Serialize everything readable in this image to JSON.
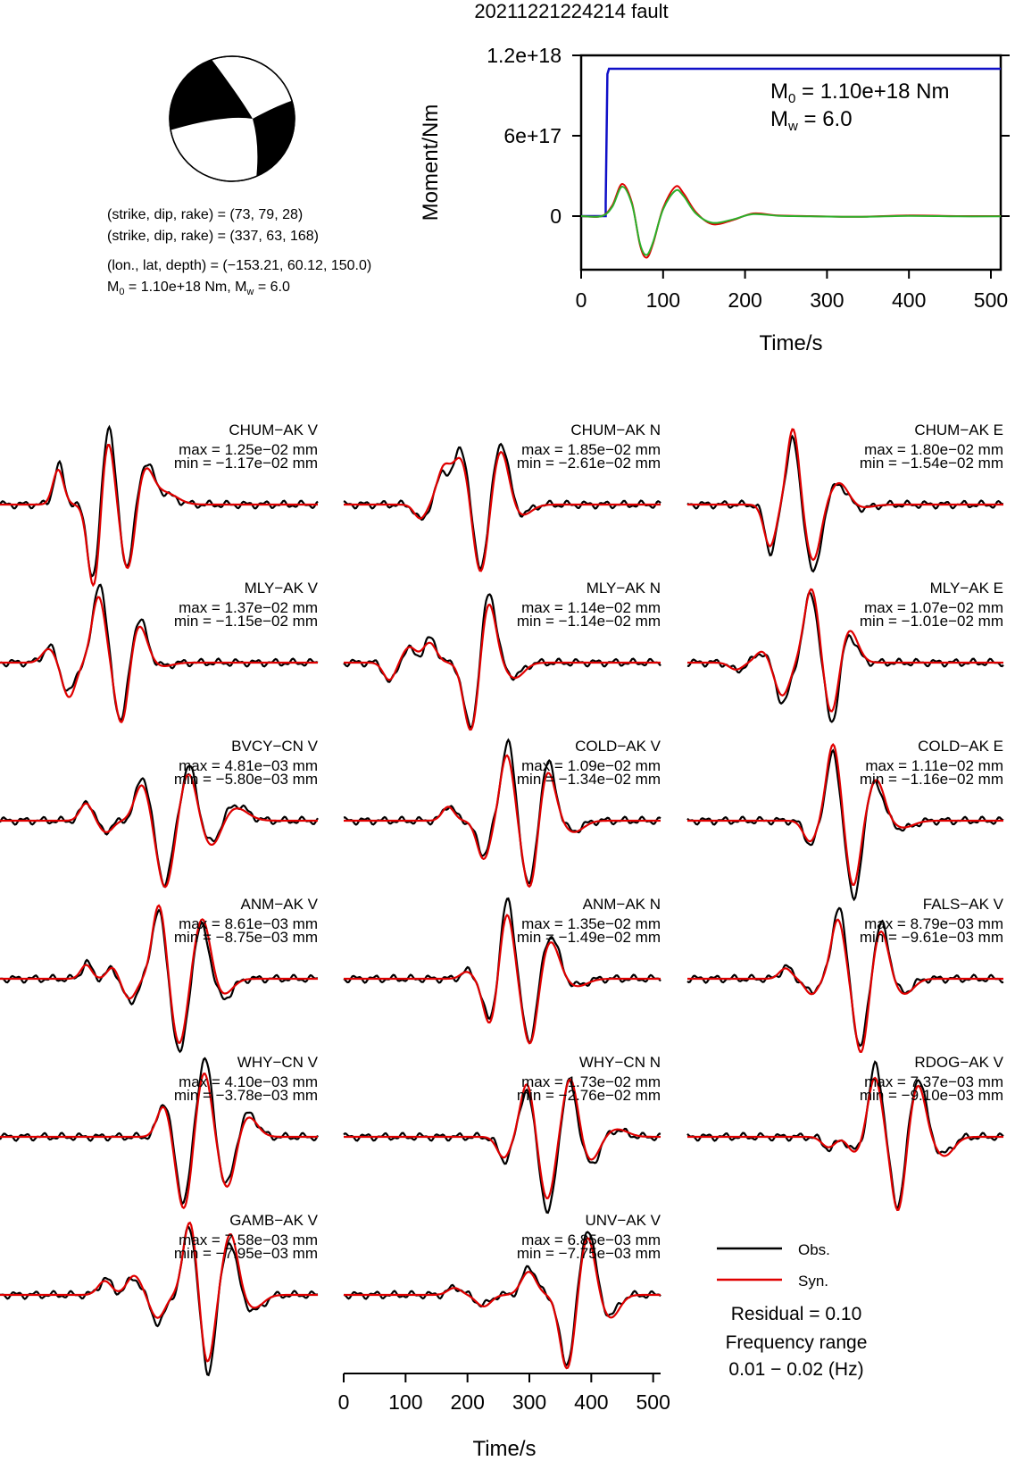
{
  "title": "20211221224214 fault",
  "colors": {
    "observed": "#000000",
    "synthetic": "#e00000",
    "moment": "#1010c8",
    "stf_green": "#2ab02a"
  },
  "mechanism": {
    "line1": "(strike, dip, rake) = (73, 79, 28)",
    "line2": "(strike, dip, rake) = (337, 63, 168)",
    "line3": "(lon., lat, depth) = (−153.21, 60.12, 150.0)",
    "line4_pre": "M",
    "line4_sub": "0",
    "line4_mid": " = 1.10e+18 Nm, M",
    "line4_sub2": "w",
    "line4_post": " = 6.0"
  },
  "moment_panel": {
    "ylabel": "Moment/Nm",
    "xlabel": "Time/s",
    "m0_pre": "M",
    "m0_sub": "0",
    "m0_post": " = 1.10e+18 Nm",
    "mw_pre": "M",
    "mw_sub": "w",
    "mw_post": " = 6.0"
  },
  "chart_data": [
    {
      "type": "line",
      "name": "moment_function",
      "x_range": [
        0,
        512
      ],
      "y_range": [
        -4e+17,
        1.2e+18
      ],
      "yticks": [
        0,
        6e+17,
        1.2e+18
      ],
      "ytick_labels": [
        "0",
        "6e+17",
        "1.2e+18"
      ],
      "xticks": [
        0,
        100,
        200,
        300,
        400,
        500
      ],
      "xtick_labels": [
        "0",
        "100",
        "200",
        "300",
        "400",
        "500"
      ],
      "xlabel": "Time/s",
      "ylabel": "Moment/Nm",
      "series": [
        {
          "color": "#1010c8",
          "x": [
            0,
            30,
            30,
            32,
            34,
            512
          ],
          "y": [
            0,
            0,
            1e+17,
            1.06e+18,
            1.1e+18,
            1.1e+18
          ]
        },
        {
          "color": "#e00000",
          "x": [
            0,
            25,
            38,
            50,
            62,
            72,
            80,
            88,
            100,
            115,
            125,
            140,
            160,
            185,
            210,
            240,
            280,
            340,
            400,
            460,
            512
          ],
          "y": [
            0,
            0,
            8e+16,
            2.4e+17,
            1e+17,
            -2.2e+17,
            -3.1e+17,
            -2e+17,
            6e+16,
            2.2e+17,
            1.7e+17,
            3e+16,
            -6e+16,
            -3e+16,
            2e+16,
            5000000000000000.0,
            0,
            -5000000000000000.0,
            5000000000000000.0,
            0,
            0
          ]
        },
        {
          "color": "#2ab02a",
          "x": [
            0,
            25,
            38,
            50,
            62,
            72,
            80,
            88,
            100,
            115,
            125,
            140,
            160,
            185,
            210,
            240,
            280,
            340,
            400,
            460,
            512
          ],
          "y": [
            0,
            0,
            7e+16,
            2.2e+17,
            9e+16,
            -2.1e+17,
            -2.9e+17,
            -1.9e+17,
            5e+16,
            1.9e+17,
            1.5e+17,
            2e+16,
            -5e+16,
            -2.5e+16,
            1.5e+16,
            3000000000000000.0,
            -2000000000000000.0,
            -5000000000000000.0,
            2000000000000000.0,
            -2000000000000000.0,
            -2000000000000000.0
          ]
        }
      ]
    },
    {
      "type": "line",
      "name": "waveforms",
      "x_range": [
        0,
        512
      ],
      "xticks": [
        0,
        100,
        200,
        300,
        400,
        500
      ],
      "xtick_labels": [
        "0",
        "100",
        "200",
        "300",
        "400",
        "500"
      ],
      "xlabel": "Time/s",
      "stations": [
        {
          "label": "CHUM−AK V",
          "max": "max = 1.25e−02 mm",
          "min": "min = −1.17e−02 mm",
          "pulses": [
            [
              95,
              8,
              0.5
            ],
            [
              150,
              9,
              -1.1
            ],
            [
              175,
              9,
              1.0
            ],
            [
              205,
              10,
              -0.9
            ],
            [
              235,
              12,
              0.5
            ],
            [
              265,
              18,
              0.15
            ]
          ]
        },
        {
          "label": "CHUM−AK N",
          "max": "max = 1.85e−02 mm",
          "min": "min = −2.61e−02 mm",
          "pulses": [
            [
              125,
              9,
              -0.2
            ],
            [
              160,
              10,
              0.45
            ],
            [
              190,
              12,
              0.7
            ],
            [
              220,
              11,
              -0.95
            ],
            [
              255,
              12,
              0.8
            ],
            [
              285,
              15,
              -0.15
            ]
          ]
        },
        {
          "label": "CHUM−AK E",
          "max": "max = 1.80e−02 mm",
          "min": "min = −1.54e−02 mm",
          "pulses": [
            [
              135,
              9,
              -0.6
            ],
            [
              170,
              9,
              1.0
            ],
            [
              205,
              11,
              -0.85
            ],
            [
              245,
              14,
              0.3
            ],
            [
              280,
              18,
              -0.05
            ]
          ]
        },
        {
          "label": "MLY−AK V",
          "max": "max = 1.37e−02 mm",
          "min": "min = −1.15e−02 mm",
          "pulses": [
            [
              80,
              10,
              0.2
            ],
            [
              110,
              10,
              -0.45
            ],
            [
              160,
              10,
              1.0
            ],
            [
              195,
              10,
              -0.85
            ],
            [
              225,
              12,
              0.55
            ],
            [
              260,
              15,
              -0.05
            ]
          ]
        },
        {
          "label": "MLY−AK N",
          "max": "max = 1.14e−02 mm",
          "min": "min = −1.14e−02 mm",
          "pulses": [
            [
              75,
              9,
              -0.25
            ],
            [
              105,
              10,
              0.2
            ],
            [
              140,
              10,
              0.3
            ],
            [
              205,
              11,
              -0.95
            ],
            [
              235,
              11,
              0.9
            ],
            [
              275,
              14,
              -0.2
            ]
          ]
        },
        {
          "label": "MLY−AK E",
          "max": "max = 1.07e−02 mm",
          "min": "min = −1.01e−02 mm",
          "pulses": [
            [
              80,
              10,
              -0.1
            ],
            [
              120,
              10,
              0.15
            ],
            [
              155,
              11,
              -0.5
            ],
            [
              200,
              11,
              1.0
            ],
            [
              235,
              11,
              -0.8
            ],
            [
              260,
              13,
              0.45
            ]
          ]
        },
        {
          "label": "BVCY−CN V",
          "max": "max = 4.81e−03 mm",
          "min": "min = −5.80e−03 mm",
          "pulses": [
            [
              140,
              9,
              0.25
            ],
            [
              170,
              10,
              -0.15
            ],
            [
              230,
              11,
              0.55
            ],
            [
              265,
              12,
              -0.9
            ],
            [
              305,
              12,
              0.7
            ],
            [
              340,
              14,
              -0.35
            ],
            [
              380,
              18,
              0.2
            ]
          ]
        },
        {
          "label": "COLD−AK V",
          "max": "max = 1.09e−02 mm",
          "min": "min = −1.34e−02 mm",
          "pulses": [
            [
              170,
              9,
              0.2
            ],
            [
              225,
              10,
              -0.5
            ],
            [
              265,
              10,
              1.0
            ],
            [
              300,
              11,
              -0.95
            ],
            [
              330,
              12,
              0.75
            ],
            [
              370,
              15,
              -0.15
            ]
          ]
        },
        {
          "label": "COLD−AK E",
          "max": "max = 1.11e−02 mm",
          "min": "min = −1.16e−02 mm",
          "pulses": [
            [
              200,
              10,
              -0.3
            ],
            [
              235,
              10,
              1.0
            ],
            [
              270,
              10,
              -1.0
            ],
            [
              305,
              12,
              0.55
            ],
            [
              350,
              16,
              -0.1
            ]
          ]
        },
        {
          "label": "ANM−AK V",
          "max": "max = 8.61e−03 mm",
          "min": "min = −8.75e−03 mm",
          "pulses": [
            [
              140,
              8,
              0.2
            ],
            [
              180,
              8,
              0.15
            ],
            [
              210,
              10,
              -0.3
            ],
            [
              255,
              10,
              1.0
            ],
            [
              290,
              11,
              -0.95
            ],
            [
              325,
              12,
              0.8
            ],
            [
              360,
              14,
              -0.25
            ]
          ]
        },
        {
          "label": "ANM−AK N",
          "max": "max = 1.35e−02 mm",
          "min": "min = −1.49e−02 mm",
          "pulses": [
            [
              200,
              9,
              0.1
            ],
            [
              235,
              10,
              -0.6
            ],
            [
              265,
              10,
              1.0
            ],
            [
              300,
              11,
              -0.9
            ],
            [
              335,
              13,
              0.55
            ],
            [
              375,
              16,
              -0.1
            ]
          ]
        },
        {
          "label": "FALS−AK V",
          "max": "max = 8.79e−03 mm",
          "min": "min = −9.61e−03 mm",
          "pulses": [
            [
              160,
              9,
              0.15
            ],
            [
              200,
              10,
              -0.2
            ],
            [
              245,
              10,
              0.9
            ],
            [
              280,
              10,
              -1.0
            ],
            [
              315,
              11,
              0.7
            ],
            [
              350,
              14,
              -0.2
            ]
          ]
        },
        {
          "label": "WHY−CN V",
          "max": "max = 4.10e−03 mm",
          "min": "min = −3.78e−03 mm",
          "pulses": [
            [
              265,
              10,
              0.45
            ],
            [
              295,
              11,
              -0.95
            ],
            [
              330,
              11,
              1.0
            ],
            [
              365,
              12,
              -0.7
            ],
            [
              400,
              14,
              0.3
            ]
          ]
        },
        {
          "label": "WHY−CN N",
          "max": "max = 1.73e−02 mm",
          "min": "min = −2.76e−02 mm",
          "pulses": [
            [
              260,
              10,
              -0.3
            ],
            [
              295,
              10,
              0.7
            ],
            [
              330,
              11,
              -0.95
            ],
            [
              365,
              11,
              0.8
            ],
            [
              400,
              13,
              -0.35
            ],
            [
              440,
              16,
              0.1
            ]
          ]
        },
        {
          "label": "RDOG−AK V",
          "max": "max = 7.37e−03 mm",
          "min": "min = −9.10e−03 mm",
          "pulses": [
            [
              230,
              10,
              -0.15
            ],
            [
              270,
              10,
              -0.2
            ],
            [
              305,
              10,
              0.9
            ],
            [
              340,
              10,
              -1.0
            ],
            [
              375,
              11,
              0.75
            ],
            [
              415,
              14,
              -0.25
            ]
          ]
        },
        {
          "label": "GAMB−AK V",
          "max": "max = 7.58e−03 mm",
          "min": "min = −7.95e−03 mm",
          "pulses": [
            [
              170,
              10,
              0.2
            ],
            [
              215,
              11,
              0.25
            ],
            [
              255,
              11,
              -0.35
            ],
            [
              305,
              10,
              1.0
            ],
            [
              335,
              10,
              -1.0
            ],
            [
              370,
              11,
              0.8
            ],
            [
              410,
              14,
              -0.2
            ]
          ]
        },
        {
          "label": "UNV−AK V",
          "max": "max = 6.85e−03 mm",
          "min": "min = −7.75e−03 mm",
          "pulses": [
            [
              180,
              10,
              0.1
            ],
            [
              225,
              11,
              -0.15
            ],
            [
              300,
              11,
              0.35
            ],
            [
              360,
              11,
              -1.0
            ],
            [
              395,
              11,
              0.85
            ],
            [
              430,
              13,
              -0.3
            ]
          ]
        }
      ]
    }
  ],
  "legend": {
    "obs": "Obs.",
    "syn": "Syn.",
    "residual": "Residual = 0.10",
    "freq_title": "Frequency range",
    "freq_value": "0.01 − 0.02 (Hz)"
  }
}
